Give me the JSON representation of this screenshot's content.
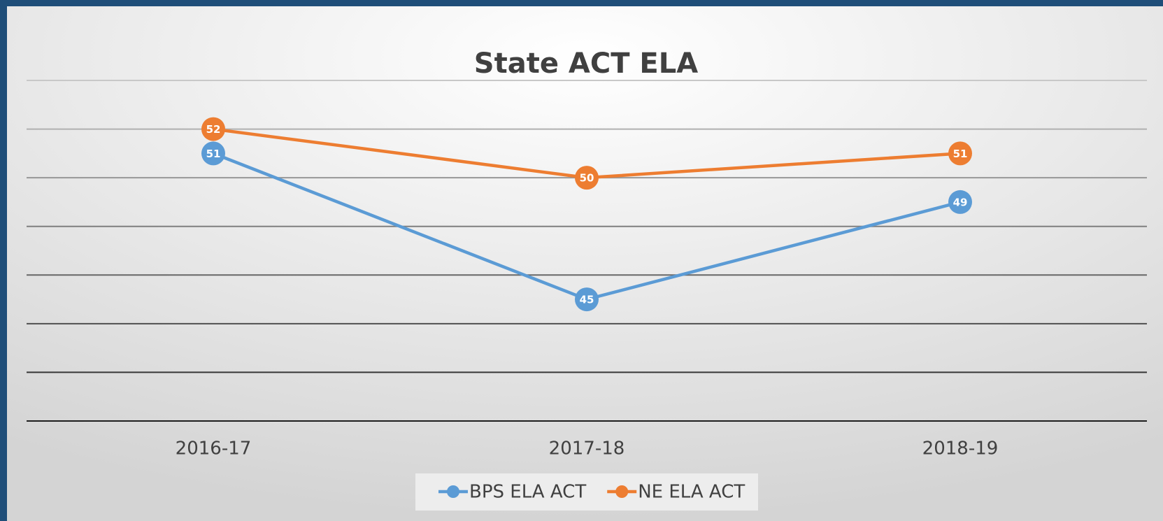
{
  "chart_data": {
    "type": "line",
    "title": "State ACT ELA",
    "categories": [
      "2016-17",
      "2017-18",
      "2018-19"
    ],
    "series": [
      {
        "name": "BPS ELA ACT",
        "color": "#5b9bd5",
        "values": [
          51,
          45,
          49
        ]
      },
      {
        "name": "NE ELA ACT",
        "color": "#ed7d31",
        "values": [
          52,
          50,
          51
        ]
      }
    ],
    "ylim": [
      40,
      54
    ],
    "yticks": [
      40,
      42,
      44,
      46,
      48,
      50,
      52,
      54
    ],
    "grid": true,
    "legend": "bottom"
  }
}
